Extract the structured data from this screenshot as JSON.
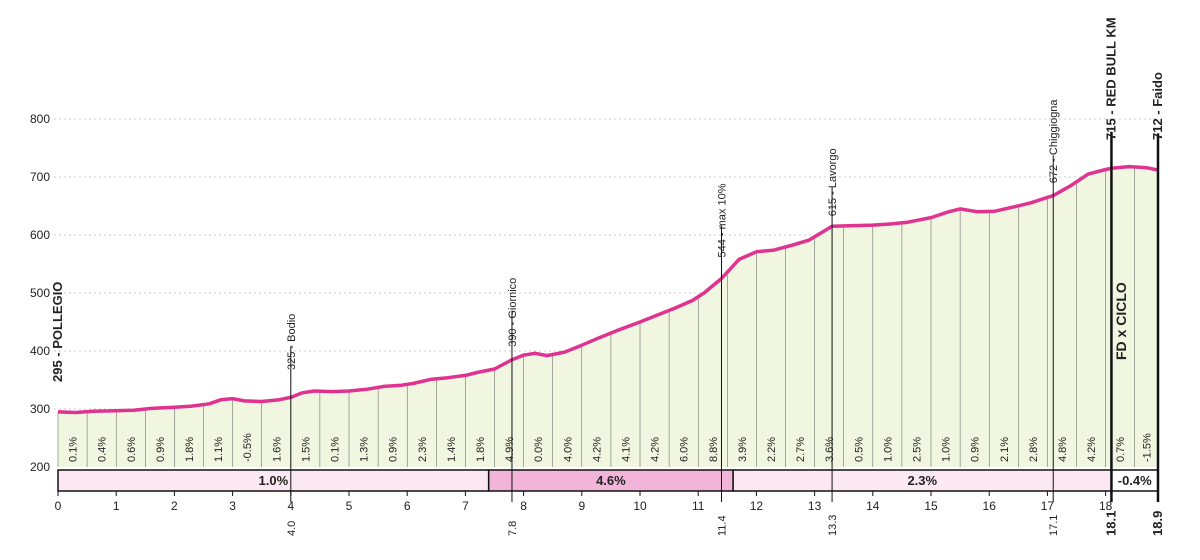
{
  "chart_data": {
    "type": "area",
    "x_unit": "km",
    "y_unit": "m",
    "xlim": [
      0,
      18.9
    ],
    "ylim": [
      200,
      800
    ],
    "y_ticks": [
      200,
      300,
      400,
      500,
      600,
      700,
      800
    ],
    "x_ticks": [
      0,
      1,
      2,
      3,
      4,
      5,
      6,
      7,
      8,
      9,
      10,
      11,
      12,
      13,
      14,
      15,
      16,
      17,
      18
    ],
    "line_color": "#e0338f",
    "fill_color": "#f1f6e0",
    "profile": [
      [
        0,
        295
      ],
      [
        0.3,
        294
      ],
      [
        0.6,
        296
      ],
      [
        1.0,
        297
      ],
      [
        1.3,
        298
      ],
      [
        1.6,
        301
      ],
      [
        2.0,
        303
      ],
      [
        2.3,
        305
      ],
      [
        2.6,
        309
      ],
      [
        2.8,
        316
      ],
      [
        3.0,
        318
      ],
      [
        3.2,
        314
      ],
      [
        3.5,
        313
      ],
      [
        3.8,
        316
      ],
      [
        4.0,
        320
      ],
      [
        4.2,
        328
      ],
      [
        4.4,
        331
      ],
      [
        4.7,
        330
      ],
      [
        5.0,
        331
      ],
      [
        5.3,
        334
      ],
      [
        5.6,
        339
      ],
      [
        5.9,
        341
      ],
      [
        6.1,
        344
      ],
      [
        6.4,
        351
      ],
      [
        6.7,
        354
      ],
      [
        7.0,
        358
      ],
      [
        7.2,
        363
      ],
      [
        7.5,
        369
      ],
      [
        7.8,
        385
      ],
      [
        8.0,
        393
      ],
      [
        8.2,
        396
      ],
      [
        8.4,
        392
      ],
      [
        8.7,
        398
      ],
      [
        9.0,
        410
      ],
      [
        9.3,
        423
      ],
      [
        9.6,
        435
      ],
      [
        10.0,
        450
      ],
      [
        10.3,
        462
      ],
      [
        10.6,
        474
      ],
      [
        10.9,
        487
      ],
      [
        11.1,
        500
      ],
      [
        11.4,
        525
      ],
      [
        11.7,
        558
      ],
      [
        12.0,
        571
      ],
      [
        12.3,
        574
      ],
      [
        12.6,
        582
      ],
      [
        12.9,
        591
      ],
      [
        13.3,
        615
      ],
      [
        13.6,
        616
      ],
      [
        14.0,
        617
      ],
      [
        14.3,
        619
      ],
      [
        14.6,
        622
      ],
      [
        15.0,
        630
      ],
      [
        15.3,
        640
      ],
      [
        15.5,
        645
      ],
      [
        15.8,
        640
      ],
      [
        16.1,
        641
      ],
      [
        16.4,
        648
      ],
      [
        16.7,
        655
      ],
      [
        17.1,
        668
      ],
      [
        17.4,
        685
      ],
      [
        17.7,
        705
      ],
      [
        18.0,
        713
      ],
      [
        18.1,
        715
      ],
      [
        18.4,
        718
      ],
      [
        18.7,
        716
      ],
      [
        18.9,
        712
      ]
    ],
    "gradient_intervals": {
      "labels": [
        "0.1%",
        "0.4%",
        "0.6%",
        "0.9%",
        "1.8%",
        "1.1%",
        "-0.5%",
        "1.6%",
        "1.5%",
        "0.1%",
        "1.3%",
        "0.9%",
        "2.3%",
        "1.4%",
        "1.8%",
        "4.9%",
        "0.0%",
        "4.0%",
        "4.2%",
        "4.1%",
        "4.2%",
        "6.0%",
        "8.8%",
        "3.9%",
        "2.2%",
        "2.7%",
        "3.6%",
        "0.5%",
        "1.0%",
        "2.5%",
        "1.0%",
        "0.9%",
        "2.1%",
        "2.8%",
        "4.8%",
        "4.2%",
        "0.7%",
        "-1.5%"
      ],
      "boundaries": [
        0,
        0.5,
        1,
        1.5,
        2,
        2.5,
        3,
        3.5,
        4,
        4.5,
        5,
        5.5,
        6,
        6.5,
        7,
        7.5,
        8,
        8.5,
        9,
        9.5,
        10,
        10.5,
        11,
        11.5,
        12,
        12.5,
        13,
        13.5,
        14,
        14.5,
        15,
        15.5,
        16,
        16.5,
        17,
        17.5,
        18,
        18.5,
        18.9
      ]
    },
    "segments": [
      {
        "start": 0,
        "end": 7.4,
        "label": "1.0%",
        "color": "#fbe8f3"
      },
      {
        "start": 7.4,
        "end": 11.6,
        "label": "4.6%",
        "color": "#f2b4d9"
      },
      {
        "start": 11.6,
        "end": 18.1,
        "label": "2.3%",
        "color": "#fbe8f3"
      },
      {
        "start": 18.1,
        "end": 18.9,
        "label": "-0.4%",
        "color": "#ffffff"
      }
    ],
    "annotations": [
      {
        "x": 0,
        "y": 295,
        "label": "295 - POLLEGIO",
        "bold": true,
        "km_label": ""
      },
      {
        "x": 4.0,
        "y": 325,
        "label": "325 - Bodio",
        "bold": false,
        "km_label": "4.0"
      },
      {
        "x": 7.8,
        "y": 390,
        "label": "390 - Giornico",
        "bold": false,
        "km_label": "7.8"
      },
      {
        "x": 11.4,
        "y": 544,
        "label": "544 - max 10%",
        "bold": false,
        "km_label": "11.4"
      },
      {
        "x": 13.3,
        "y": 615,
        "label": "615 - Lavorgo",
        "bold": false,
        "km_label": "13.3"
      },
      {
        "x": 17.1,
        "y": 672,
        "label": "672 - Chiggiogna",
        "bold": false,
        "km_label": "17.1"
      },
      {
        "x": 18.1,
        "y": 715,
        "label": "715 - RED BULL KM",
        "bold": true,
        "km_label": "18.1"
      },
      {
        "x": 18.9,
        "y": 712,
        "label": "712 - Faido",
        "bold": true,
        "km_label": "18.9"
      }
    ],
    "logo_text": "FD x CICLO"
  }
}
